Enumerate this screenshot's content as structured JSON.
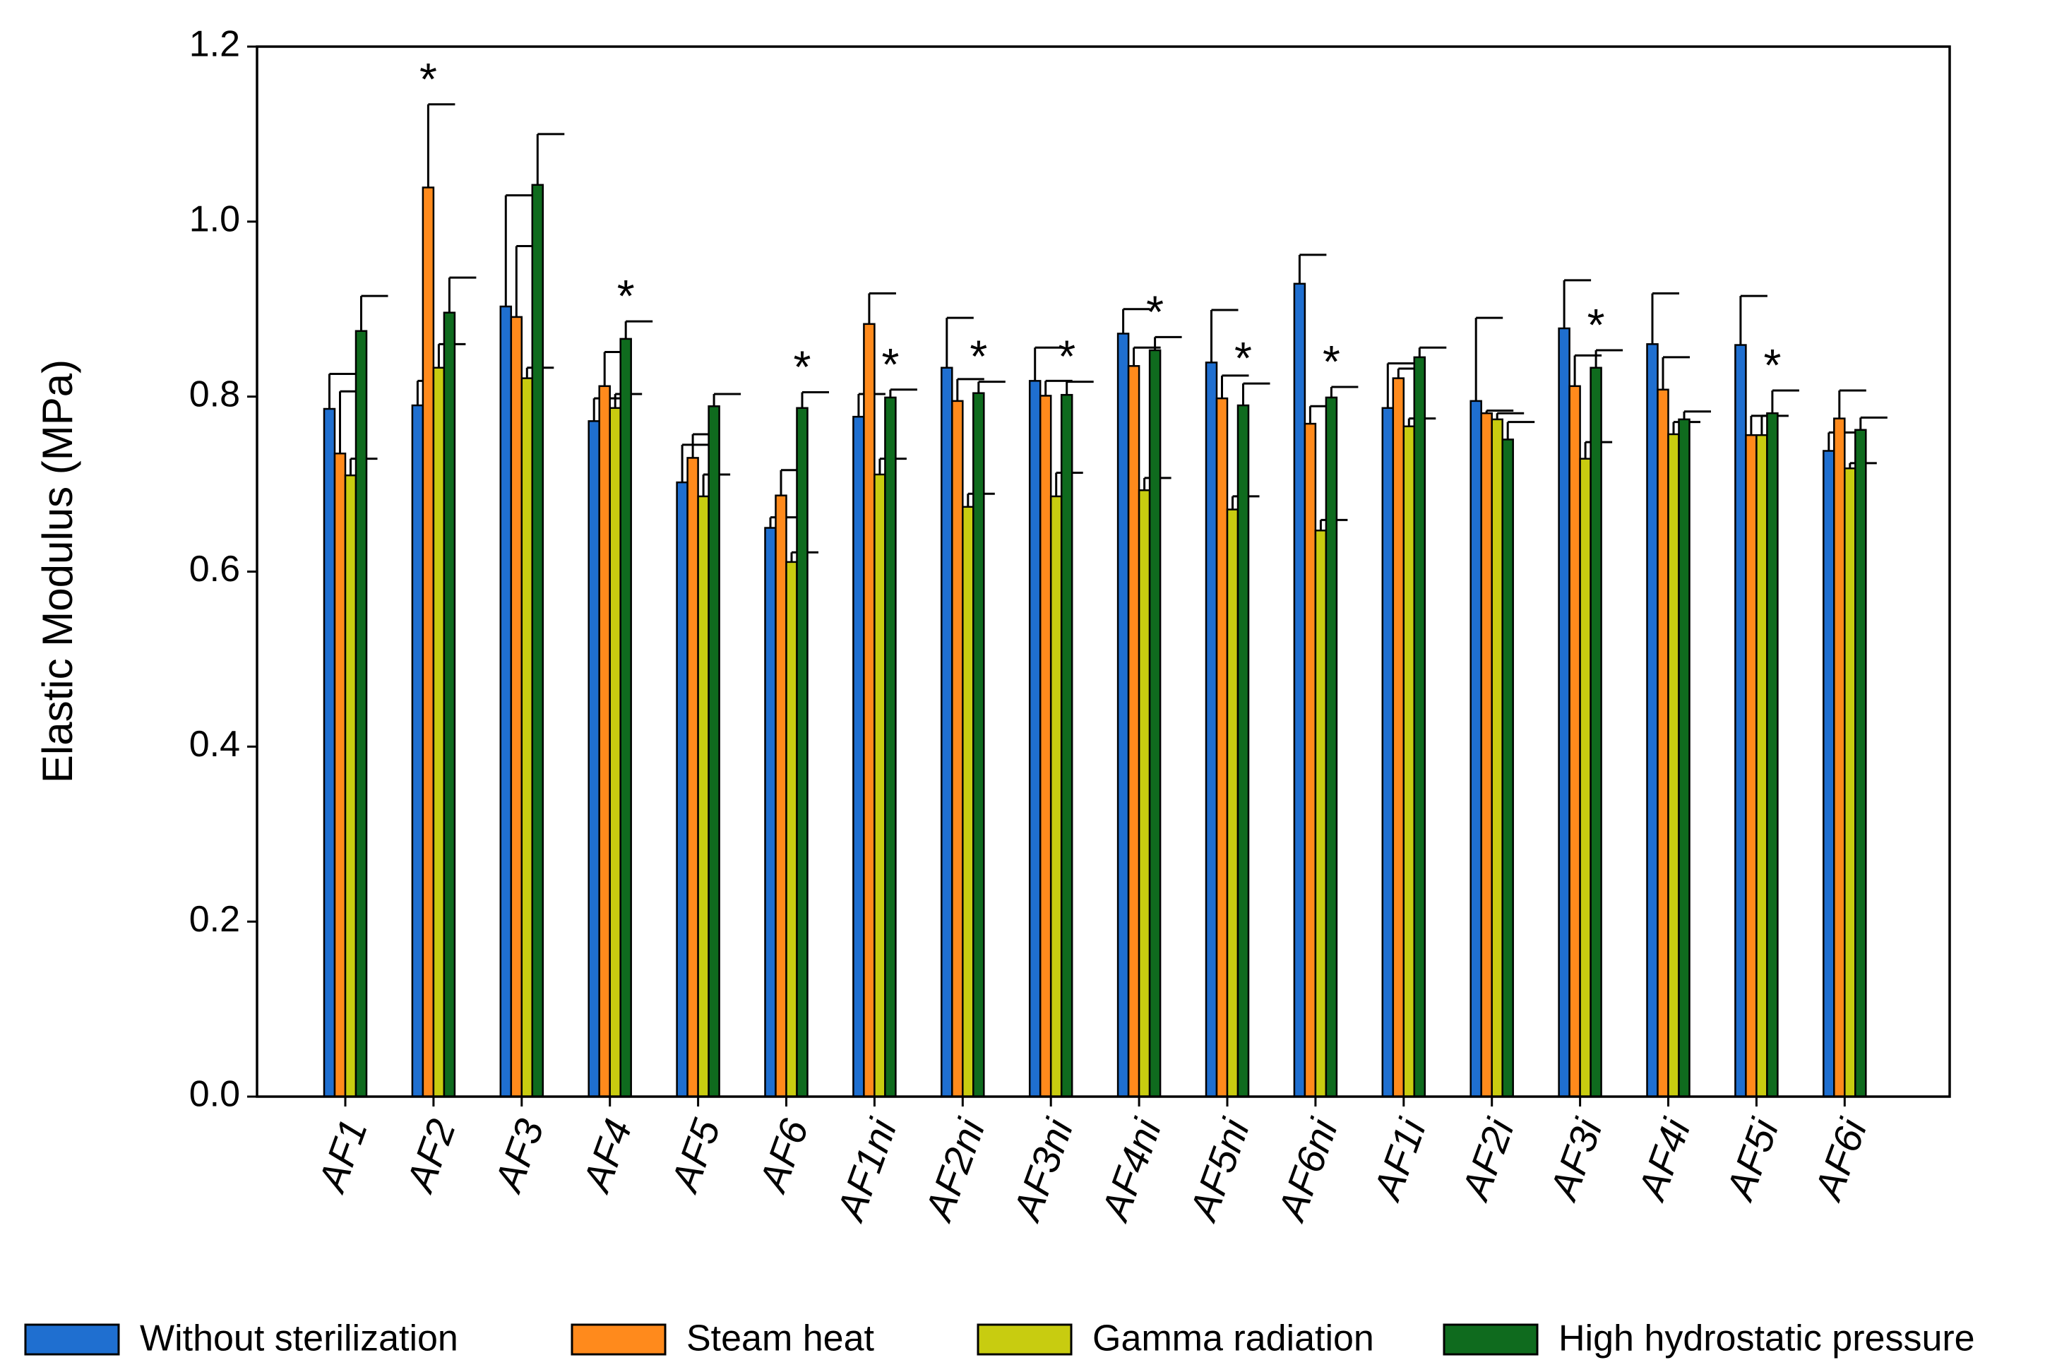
{
  "chart_data": {
    "type": "bar",
    "y_label": "Elastic Modulus (MPa)",
    "categories": [
      "AF1",
      "AF2",
      "AF3",
      "AF4",
      "AF5",
      "AF6",
      "AF1ni",
      "AF2ni",
      "AF3ni",
      "AF4ni",
      "AF5ni",
      "AF6ni",
      "AF1i",
      "AF2i",
      "AF3i",
      "AF4i",
      "AF5i",
      "AF6i"
    ],
    "series": [
      {
        "name": "Without sterilization",
        "color": "#1f6fd0",
        "values": [
          0.786,
          0.79,
          0.903,
          0.772,
          0.702,
          0.65,
          0.777,
          0.833,
          0.818,
          0.872,
          0.839,
          0.929,
          0.787,
          0.795,
          0.878,
          0.86,
          0.859,
          0.738
        ],
        "errors": [
          0.04,
          0.028,
          0.127,
          0.026,
          0.043,
          0.012,
          0.026,
          0.057,
          0.038,
          0.028,
          0.06,
          0.033,
          0.051,
          0.095,
          0.055,
          0.058,
          0.056,
          0.021
        ]
      },
      {
        "name": "Steam heat",
        "color": "#ff8a1c",
        "values": [
          0.735,
          1.039,
          0.891,
          0.812,
          0.73,
          0.687,
          0.883,
          0.795,
          0.801,
          0.835,
          0.798,
          0.769,
          0.821,
          0.781,
          0.812,
          0.808,
          0.756,
          0.775
        ],
        "errors": [
          0.071,
          0.095,
          0.081,
          0.039,
          0.027,
          0.029,
          0.035,
          0.025,
          0.017,
          0.021,
          0.026,
          0.02,
          0.011,
          0.003,
          0.035,
          0.037,
          0.022,
          0.032
        ]
      },
      {
        "name": "Gamma radiation",
        "color": "#c8cc10",
        "values": [
          0.71,
          0.833,
          0.821,
          0.787,
          0.686,
          0.611,
          0.711,
          0.674,
          0.686,
          0.693,
          0.671,
          0.647,
          0.766,
          0.774,
          0.729,
          0.757,
          0.756,
          0.718
        ],
        "errors": [
          0.019,
          0.027,
          0.012,
          0.016,
          0.025,
          0.011,
          0.018,
          0.015,
          0.027,
          0.014,
          0.015,
          0.012,
          0.009,
          0.007,
          0.019,
          0.014,
          0.022,
          0.006
        ]
      },
      {
        "name": "High hydrostatic pressure",
        "color": "#0f6b1e",
        "values": [
          0.875,
          0.896,
          1.042,
          0.866,
          0.789,
          0.787,
          0.799,
          0.804,
          0.802,
          0.853,
          0.79,
          0.799,
          0.845,
          0.751,
          0.833,
          0.774,
          0.781,
          0.762
        ],
        "errors": [
          0.04,
          0.04,
          0.058,
          0.02,
          0.014,
          0.018,
          0.009,
          0.013,
          0.015,
          0.015,
          0.025,
          0.012,
          0.011,
          0.02,
          0.02,
          0.009,
          0.026,
          0.014
        ]
      }
    ],
    "annotations": [
      {
        "text": "*",
        "category": "AF2",
        "series": "Steam heat"
      },
      {
        "text": "*",
        "category": "AF4",
        "series": "High hydrostatic pressure"
      },
      {
        "text": "*",
        "category": "AF6",
        "series": "High hydrostatic pressure"
      },
      {
        "text": "*",
        "category": "AF1ni",
        "series": "High hydrostatic pressure"
      },
      {
        "text": "*",
        "category": "AF2ni",
        "series": "High hydrostatic pressure"
      },
      {
        "text": "*",
        "category": "AF3ni",
        "series": "High hydrostatic pressure"
      },
      {
        "text": "*",
        "category": "AF4ni",
        "series": "High hydrostatic pressure"
      },
      {
        "text": "*",
        "category": "AF5ni",
        "series": "High hydrostatic pressure"
      },
      {
        "text": "*",
        "category": "AF6ni",
        "series": "High hydrostatic pressure"
      },
      {
        "text": "*",
        "category": "AF3i",
        "series": "High hydrostatic pressure"
      },
      {
        "text": "*",
        "category": "AF5i",
        "series": "High hydrostatic pressure"
      }
    ],
    "ylim": [
      0,
      1.2
    ],
    "yticks": [
      {
        "value": 0,
        "label": "0.0"
      },
      0.2,
      0.4,
      0.6,
      0.8,
      {
        "value": 1,
        "label": "1.0"
      },
      1.2
    ],
    "grid": false,
    "legend": "bottom"
  }
}
